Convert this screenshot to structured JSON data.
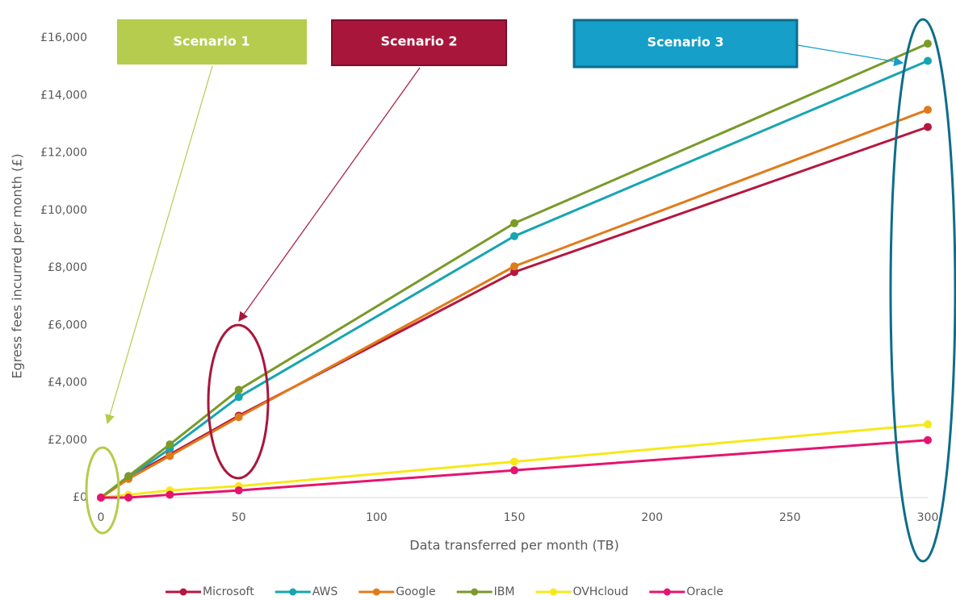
{
  "chart_data": {
    "type": "line",
    "xlabel": "Data transferred per month (TB)",
    "ylabel": "Egress fees incurred per month (£)",
    "x": [
      0,
      10,
      25,
      50,
      150,
      300
    ],
    "series": [
      {
        "name": "Microsoft",
        "color": "#b5173f",
        "values": [
          0,
          700,
          1500,
          2850,
          7850,
          12900
        ]
      },
      {
        "name": "AWS",
        "color": "#17a5b0",
        "values": [
          0,
          700,
          1700,
          3500,
          9100,
          15200
        ]
      },
      {
        "name": "Google",
        "color": "#e07b1a",
        "values": [
          0,
          650,
          1450,
          2800,
          8050,
          13500
        ]
      },
      {
        "name": "IBM",
        "color": "#7a9a2a",
        "values": [
          0,
          750,
          1850,
          3750,
          9550,
          15800
        ]
      },
      {
        "name": "OVHcloud",
        "color": "#f7e81a",
        "values": [
          0,
          100,
          250,
          400,
          1250,
          2550
        ]
      },
      {
        "name": "Oracle",
        "color": "#e5146e",
        "values": [
          0,
          0,
          100,
          250,
          950,
          2000
        ]
      }
    ],
    "xlim": [
      0,
      300
    ],
    "xticks": [
      0,
      50,
      100,
      150,
      200,
      250,
      300
    ],
    "ylim": [
      0,
      16000
    ],
    "yticks": [
      {
        "value": 0,
        "label": "£0"
      },
      {
        "value": 2000,
        "label": "£2,000"
      },
      {
        "value": 4000,
        "label": "£4,000"
      },
      {
        "value": 6000,
        "label": "£6,000"
      },
      {
        "value": 8000,
        "label": "£8,000"
      },
      {
        "value": 10000,
        "label": "£10,000"
      },
      {
        "value": 12000,
        "label": "£12,000"
      },
      {
        "value": 14000,
        "label": "£14,000"
      },
      {
        "value": 16000,
        "label": "£16,000"
      }
    ],
    "annotations": [
      "Scenario 1",
      "Scenario 2",
      "Scenario 3"
    ],
    "legend": "bottom"
  }
}
